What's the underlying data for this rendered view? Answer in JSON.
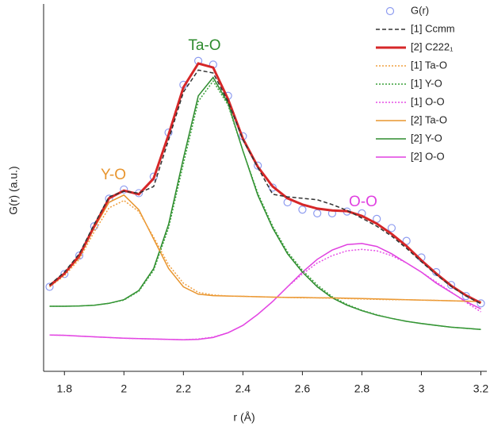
{
  "chart_data": {
    "type": "line",
    "xlabel": "r (Å)",
    "ylabel": "G(r) (a.u.)",
    "x": [
      1.75,
      1.8,
      1.85,
      1.9,
      1.95,
      2.0,
      2.05,
      2.1,
      2.15,
      2.2,
      2.25,
      2.3,
      2.35,
      2.4,
      2.45,
      2.5,
      2.55,
      2.6,
      2.65,
      2.7,
      2.75,
      2.8,
      2.85,
      2.9,
      2.95,
      3.0,
      3.05,
      3.1,
      3.15,
      3.2
    ],
    "xlim": [
      1.73,
      3.22
    ],
    "xticks": [
      1.8,
      2.0,
      2.2,
      2.4,
      2.6,
      2.8,
      3.0,
      3.2
    ],
    "ylim": [
      0,
      100
    ],
    "series": [
      {
        "name": "G(r)",
        "color": "#8e9cf0",
        "style": "circle",
        "values": [
          23,
          26.5,
          31.5,
          39.5,
          47,
          49.5,
          48.5,
          53,
          65,
          78,
          84.5,
          83.5,
          75,
          64,
          56,
          50,
          46,
          44,
          43,
          43,
          43.5,
          43,
          41.5,
          39,
          35.5,
          31,
          27,
          23.5,
          20.5,
          18.5
        ]
      },
      {
        "name": "[1] Ccmm",
        "color": "#333333",
        "style": "dashed",
        "values": [
          23.5,
          27,
          32,
          40,
          47.5,
          49,
          48.5,
          50.3,
          63,
          76,
          82,
          81.2,
          73.5,
          63,
          55.5,
          48.2,
          47.5,
          47.1,
          46.7,
          45.4,
          43.8,
          41.7,
          39.5,
          36.8,
          33.5,
          29.8,
          26.3,
          23.1,
          20.5,
          18.4
        ]
      },
      {
        "name": "[2] C222₁",
        "color": "#d62728",
        "style": "thick",
        "values": [
          23.3,
          26.6,
          31.5,
          39.5,
          47.1,
          49.2,
          48.2,
          52.5,
          64.4,
          77.3,
          83.8,
          82.7,
          74.1,
          63.3,
          55.7,
          50.3,
          47.1,
          45.4,
          44.3,
          43.8,
          43.6,
          42.3,
          40.2,
          37.4,
          34.1,
          30.2,
          26.6,
          23.3,
          20.7,
          18.6
        ]
      },
      {
        "name": "[1] Ta-O",
        "color": "#f0a040",
        "style": "dotted",
        "values": [
          23,
          26,
          30.5,
          38,
          44.5,
          46.5,
          43.5,
          36.5,
          29,
          24,
          21.5,
          20.8,
          20.5,
          20.4,
          20.3,
          20.2,
          20.1,
          20,
          20,
          19.9,
          19.8,
          19.7,
          19.6,
          19.5,
          19.5,
          19.4,
          19.3,
          19.2,
          19.1,
          19
        ]
      },
      {
        "name": "[1] Y-O",
        "color": "#3aa03a",
        "style": "dotted",
        "values": [
          17.7,
          17.7,
          17.8,
          18,
          18.5,
          19.4,
          21.8,
          27.5,
          39,
          56.5,
          73.5,
          79,
          72.5,
          60,
          48.5,
          39.5,
          32.5,
          27.5,
          23.5,
          20.3,
          18.2,
          16.6,
          15.4,
          14.4,
          13.6,
          13,
          12.5,
          12,
          11.7,
          11.4
        ]
      },
      {
        "name": "[1] O-O",
        "color": "#e64ee6",
        "style": "dotted",
        "values": [
          9.9,
          9.8,
          9.6,
          9.4,
          9.2,
          9,
          8.9,
          8.8,
          8.7,
          8.6,
          8.8,
          9.3,
          10.5,
          12.5,
          15.5,
          19,
          23,
          26.5,
          29.5,
          31.5,
          32.8,
          33.2,
          32.8,
          31.5,
          29.5,
          27,
          24.3,
          21.6,
          18.8,
          16.2
        ]
      },
      {
        "name": "[2] Ta-O",
        "color": "#e8952e",
        "style": "solid",
        "values": [
          23,
          26.5,
          31,
          39,
          46,
          48,
          44,
          36,
          28,
          23,
          21,
          20.6,
          20.5,
          20.4,
          20.3,
          20.2,
          20.1,
          20.1,
          20,
          20,
          19.9,
          19.8,
          19.7,
          19.6,
          19.5,
          19.4,
          19.3,
          19.2,
          19.1,
          19
        ]
      },
      {
        "name": "[2] Y-O",
        "color": "#2e8b2e",
        "style": "solid",
        "values": [
          17.7,
          17.7,
          17.8,
          18,
          18.5,
          19.5,
          22,
          28,
          40,
          58,
          75,
          80,
          73,
          60,
          48,
          39,
          32,
          27,
          23,
          20,
          18,
          16.5,
          15.3,
          14.4,
          13.6,
          13,
          12.5,
          12,
          11.7,
          11.4
        ]
      },
      {
        "name": "[2] O-O",
        "color": "#e040e0",
        "style": "solid",
        "values": [
          9.9,
          9.8,
          9.6,
          9.4,
          9.2,
          9,
          8.9,
          8.8,
          8.7,
          8.6,
          8.7,
          9.2,
          10.5,
          12.5,
          15.5,
          19,
          23,
          27,
          30.5,
          33,
          34.5,
          34.8,
          34,
          32,
          29.5,
          27,
          24,
          21.5,
          19,
          17
        ]
      }
    ],
    "annotations": [
      {
        "text": "Ta-O",
        "color": "#2e8b2e"
      },
      {
        "text": "Y-O",
        "color": "#e8952e"
      },
      {
        "text": "O-O",
        "color": "#e040e0"
      }
    ]
  }
}
